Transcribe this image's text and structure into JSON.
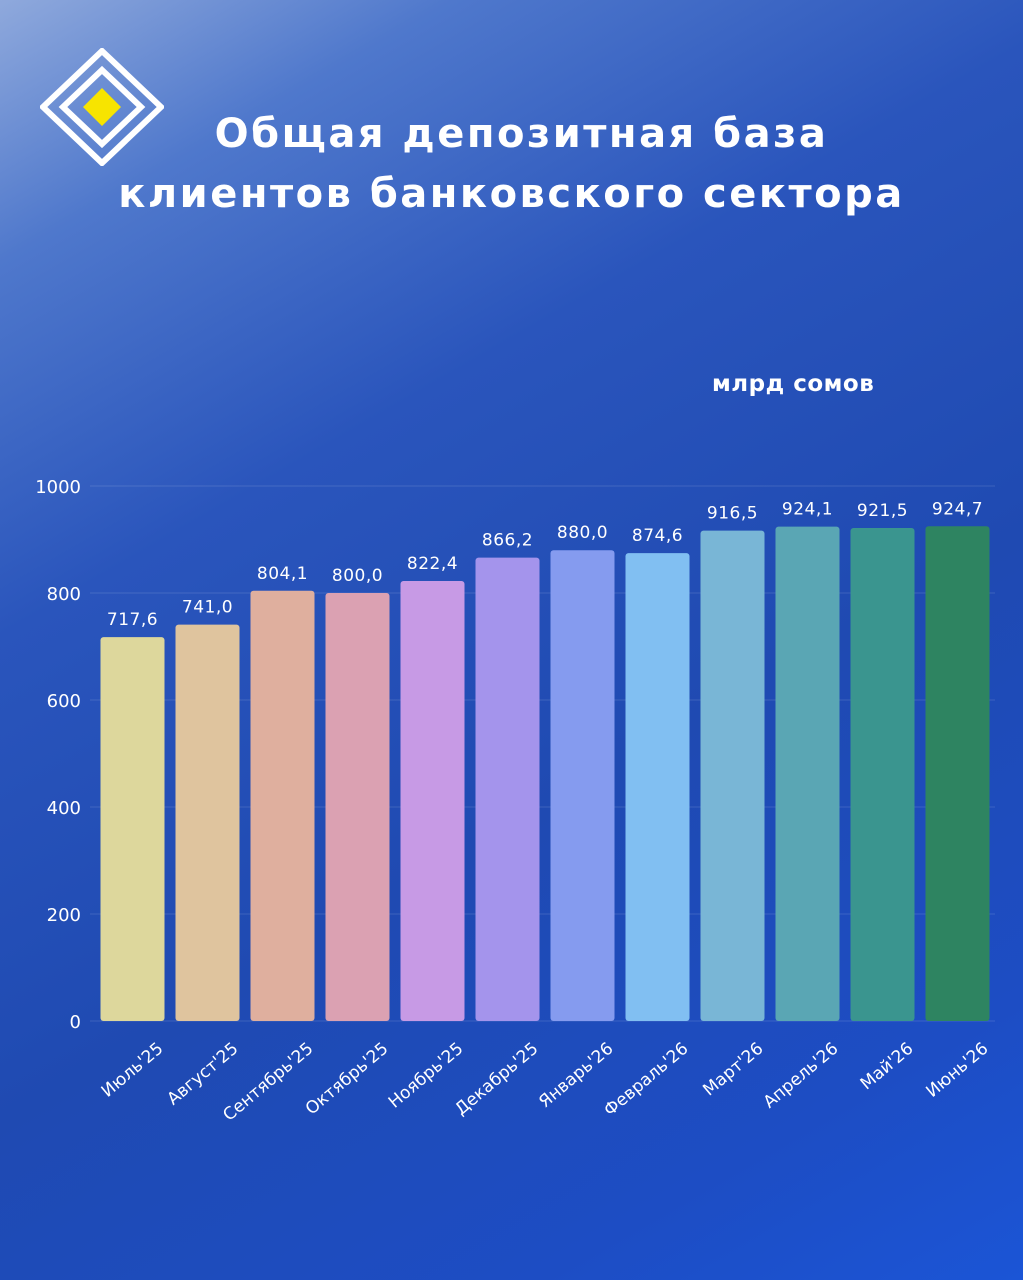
{
  "title": {
    "line1": "Общая депозитная база",
    "line2": "клиентов банковского сектора"
  },
  "logo_icon": "nested-diamond-logo-icon",
  "colors": {
    "logo_outline": "#ffffff",
    "logo_center": "#f7e400",
    "text": "#ffffff"
  },
  "chart_data": {
    "type": "bar",
    "unit_label": "млрд сомов",
    "categories": [
      "Июль'25",
      "Август'25",
      "Сентябрь'25",
      "Октябрь'25",
      "Ноябрь'25",
      "Декабрь'25",
      "Январь'26",
      "Февраль'26",
      "Март'26",
      "Апрель'26",
      "Май'26",
      "Июнь'26"
    ],
    "values": [
      717.6,
      741.0,
      804.1,
      800.0,
      822.4,
      866.2,
      880.0,
      874.6,
      916.5,
      924.1,
      921.5,
      924.7
    ],
    "value_labels": [
      "717,6",
      "741,0",
      "804,1",
      "800,0",
      "822,4",
      "866,2",
      "880,0",
      "874,6",
      "916,5",
      "924,1",
      "921,5",
      "924,7"
    ],
    "bar_colors": [
      "#ddd79c",
      "#dfc49e",
      "#dfaf9e",
      "#dba1b2",
      "#c79ae5",
      "#a494ec",
      "#859bef",
      "#81bff2",
      "#79b6d6",
      "#5aa6b4",
      "#3a958f",
      "#2e8461"
    ],
    "ylim": [
      0,
      1000
    ],
    "yticks": [
      0,
      200,
      400,
      600,
      800,
      1000
    ],
    "grid": true,
    "legend": "none"
  }
}
